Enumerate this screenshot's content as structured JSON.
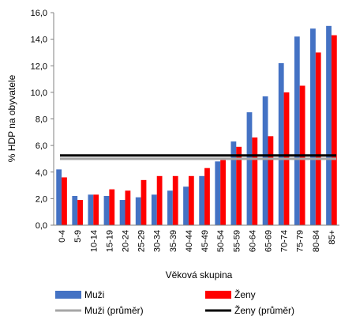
{
  "chart_data": {
    "type": "bar",
    "title": "",
    "xlabel": "Věková skupina",
    "ylabel": "% HDP na obyvatele",
    "ylim": [
      0,
      16
    ],
    "ytick_step": 2,
    "ytick_labels": [
      "0,0",
      "2,0",
      "4,0",
      "6,0",
      "8,0",
      "10,0",
      "12,0",
      "14,0",
      "16,0"
    ],
    "grid": false,
    "legend_position": "bottom",
    "categories": [
      "0-4",
      "5-9",
      "10-14",
      "15-19",
      "20-24",
      "25-29",
      "30-34",
      "35-39",
      "40-44",
      "45-49",
      "50-54",
      "55-59",
      "60-64",
      "65-69",
      "70-74",
      "75-79",
      "80-84",
      "85+"
    ],
    "series": [
      {
        "name": "Muži",
        "color": "#4472C4",
        "values": [
          4.2,
          2.2,
          2.3,
          2.2,
          1.9,
          2.1,
          2.3,
          2.6,
          2.9,
          3.7,
          4.8,
          6.3,
          8.5,
          9.7,
          12.2,
          14.2,
          14.8,
          15.0
        ]
      },
      {
        "name": "Ženy",
        "color": "#FF0000",
        "values": [
          3.6,
          1.9,
          2.3,
          2.7,
          2.6,
          3.4,
          3.7,
          3.7,
          3.7,
          4.3,
          4.9,
          5.9,
          6.6,
          6.7,
          10.0,
          10.5,
          13.0,
          14.3
        ]
      }
    ],
    "reference_lines": [
      {
        "name": "Muži (průměr)",
        "color": "#A6A6A6",
        "value": 5.0
      },
      {
        "name": "Ženy (průměr)",
        "color": "#000000",
        "value": 5.25
      }
    ]
  }
}
